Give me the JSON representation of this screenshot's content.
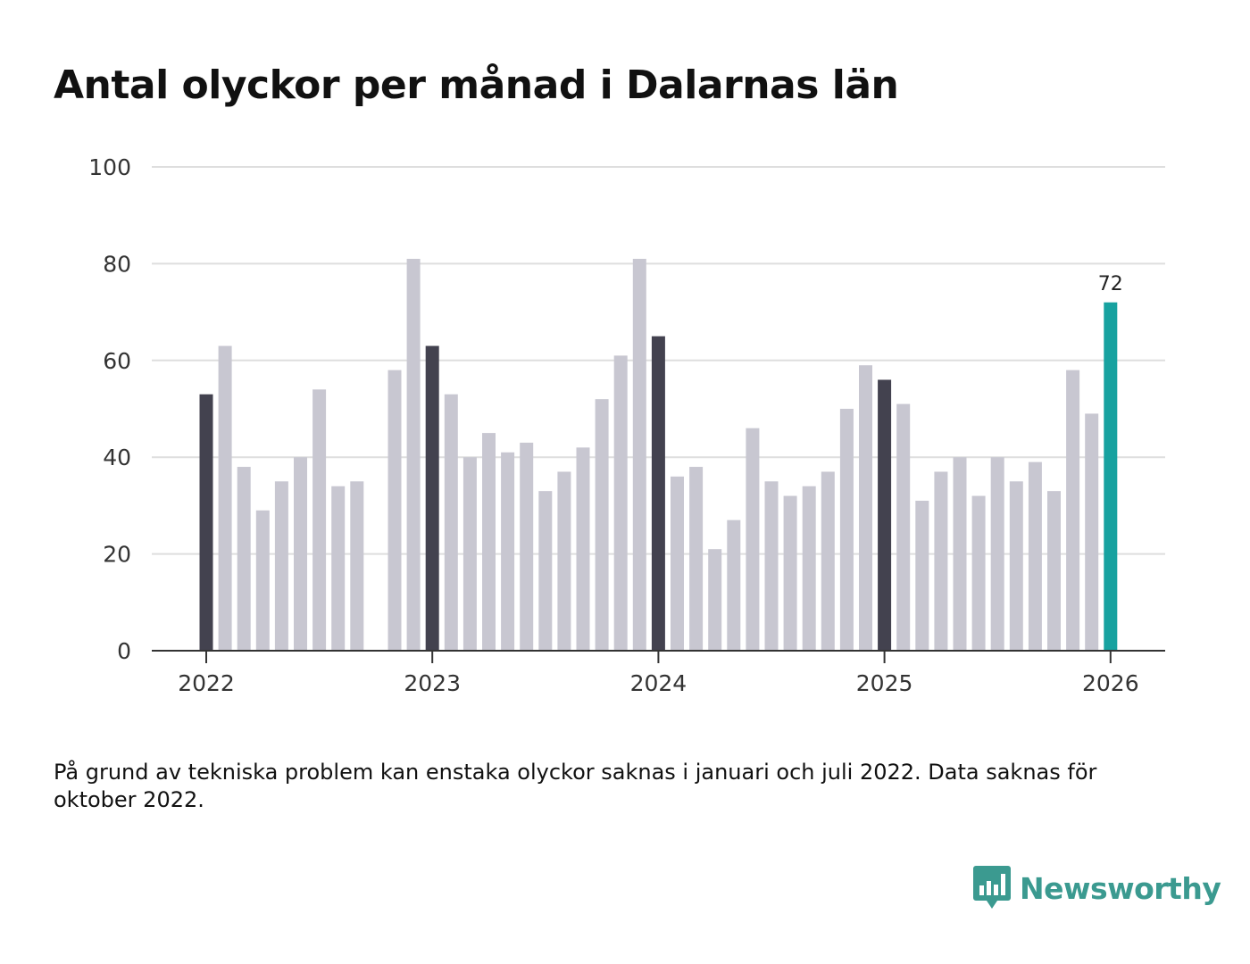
{
  "chart_data": {
    "type": "bar",
    "title": "Antal olyckor per månad i Dalarnas län",
    "xlabel": "",
    "ylabel": "",
    "ylim": [
      0,
      100
    ],
    "yticks": [
      "0",
      "20",
      "40",
      "60",
      "80",
      "100"
    ],
    "xticks": [
      "2022",
      "2023",
      "2024",
      "2025",
      "2026"
    ],
    "start": "2022-01",
    "months": [
      "2022-01",
      "2022-02",
      "2022-03",
      "2022-04",
      "2022-05",
      "2022-06",
      "2022-07",
      "2022-08",
      "2022-09",
      "2022-10",
      "2022-11",
      "2022-12",
      "2023-01",
      "2023-02",
      "2023-03",
      "2023-04",
      "2023-05",
      "2023-06",
      "2023-07",
      "2023-08",
      "2023-09",
      "2023-10",
      "2023-11",
      "2023-12",
      "2024-01",
      "2024-02",
      "2024-03",
      "2024-04",
      "2024-05",
      "2024-06",
      "2024-07",
      "2024-08",
      "2024-09",
      "2024-10",
      "2024-11",
      "2024-12",
      "2025-01",
      "2025-02",
      "2025-03",
      "2025-04",
      "2025-05",
      "2025-06",
      "2025-07",
      "2025-08",
      "2025-09",
      "2025-10",
      "2025-11",
      "2025-12",
      "2026-01"
    ],
    "values": [
      53,
      63,
      38,
      29,
      35,
      40,
      54,
      34,
      35,
      null,
      58,
      81,
      63,
      53,
      40,
      45,
      41,
      43,
      33,
      37,
      42,
      52,
      61,
      81,
      65,
      36,
      38,
      21,
      27,
      46,
      35,
      32,
      34,
      37,
      50,
      59,
      56,
      51,
      31,
      37,
      40,
      32,
      40,
      35,
      39,
      33,
      58,
      49,
      72
    ],
    "highlight": {
      "index": 48,
      "label": "72"
    },
    "colors": {
      "default": "#c8c7d1",
      "january": "#43424f",
      "highlight": "#17a2a0",
      "grid": "#dedede",
      "axis": "#333333"
    }
  },
  "footnote": "På grund av tekniska problem kan enstaka olyckor saknas i januari och juli 2022. Data saknas för oktober 2022.",
  "logo": {
    "text": "Newsworthy",
    "icon": "newsworthy-chart-icon",
    "color": "#3b9a90"
  }
}
